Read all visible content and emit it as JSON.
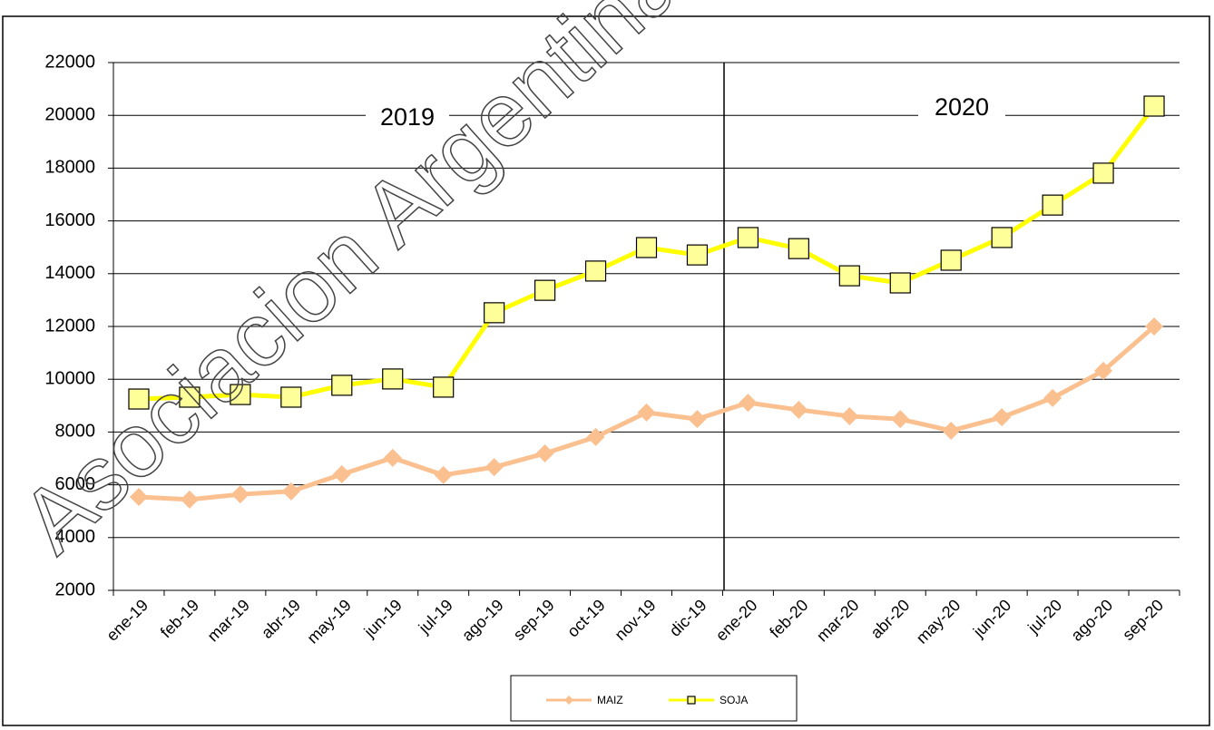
{
  "chart_data": {
    "type": "line",
    "watermark": "Asociacion Argentina F",
    "annotations": [
      "2019",
      "2020"
    ],
    "categories": [
      "ene-19",
      "feb-19",
      "mar-19",
      "abr-19",
      "may-19",
      "jun-19",
      "jul-19",
      "ago-19",
      "sep-19",
      "oct-19",
      "nov-19",
      "dic-19",
      "ene-20",
      "feb-20",
      "mar-20",
      "abr-20",
      "may-20",
      "jun-20",
      "jul-20",
      "ago-20",
      "sep-20"
    ],
    "series": [
      {
        "name": "MAIZ",
        "color": "#fac090",
        "marker": "diamond",
        "values": [
          5540,
          5440,
          5640,
          5750,
          6400,
          7020,
          6370,
          6670,
          7190,
          7810,
          8740,
          8490,
          9110,
          8840,
          8600,
          8490,
          8050,
          8560,
          9290,
          10320,
          12000
        ]
      },
      {
        "name": "SOJA",
        "color": "#ffff00",
        "marker": "square",
        "values": [
          9250,
          9320,
          9420,
          9320,
          9770,
          10010,
          9700,
          12520,
          13370,
          14100,
          14990,
          14710,
          15370,
          14950,
          13920,
          13650,
          14510,
          15370,
          16600,
          17810,
          20350
        ]
      }
    ],
    "ylim": [
      2000,
      22000
    ],
    "yticks": [
      2000,
      4000,
      6000,
      8000,
      10000,
      12000,
      14000,
      16000,
      18000,
      20000,
      22000
    ],
    "grid": true
  }
}
